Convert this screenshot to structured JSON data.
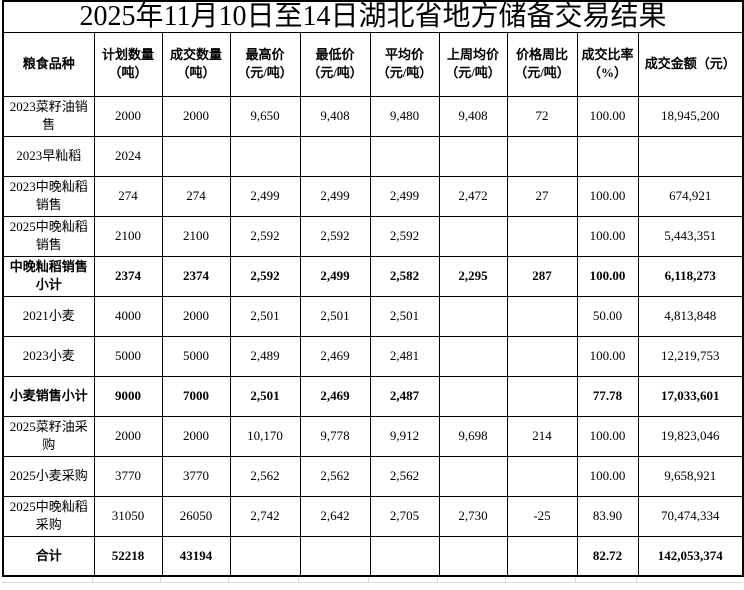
{
  "title": "2025年11月10日至14日湖北省地方储备交易结果",
  "colors": {
    "background": "#ffffff",
    "border": "#000000",
    "text": "#000000",
    "sheet_gridline": "#d9d9d9"
  },
  "chart_data": {
    "type": "table",
    "title": "2025年11月10日至14日湖北省地方储备交易结果",
    "columns": [
      "粮食品种",
      "计划数量\n（吨）",
      "成交数量\n（吨）",
      "最高价\n（元/吨）",
      "最低价\n（元/吨）",
      "平均价\n（元/吨）",
      "上周均价\n（元/吨）",
      "价格周比\n（元/吨）",
      "成交比率\n（%）",
      "成交金额（元）"
    ],
    "rows": [
      {
        "name": "2023菜籽油销售",
        "bold": false,
        "values": [
          "2000",
          "2000",
          "9,650",
          "9,408",
          "9,480",
          "9,408",
          "72",
          "100.00",
          "18,945,200"
        ]
      },
      {
        "name": "2023早籼稻",
        "bold": false,
        "values": [
          "2024",
          "",
          "",
          "",
          "",
          "",
          "",
          "",
          ""
        ]
      },
      {
        "name": "2023中晚籼稻销售",
        "bold": false,
        "values": [
          "274",
          "274",
          "2,499",
          "2,499",
          "2,499",
          "2,472",
          "27",
          "100.00",
          "674,921"
        ]
      },
      {
        "name": "2025中晚籼稻销售",
        "bold": false,
        "values": [
          "2100",
          "2100",
          "2,592",
          "2,592",
          "2,592",
          "",
          "",
          "100.00",
          "5,443,351"
        ]
      },
      {
        "name": "中晚籼稻销售小计",
        "bold": true,
        "values": [
          "2374",
          "2374",
          "2,592",
          "2,499",
          "2,582",
          "2,295",
          "287",
          "100.00",
          "6,118,273"
        ]
      },
      {
        "name": "2021小麦",
        "bold": false,
        "values": [
          "4000",
          "2000",
          "2,501",
          "2,501",
          "2,501",
          "",
          "",
          "50.00",
          "4,813,848"
        ]
      },
      {
        "name": "2023小麦",
        "bold": false,
        "values": [
          "5000",
          "5000",
          "2,489",
          "2,469",
          "2,481",
          "",
          "",
          "100.00",
          "12,219,753"
        ]
      },
      {
        "name": "小麦销售小计",
        "bold": true,
        "values": [
          "9000",
          "7000",
          "2,501",
          "2,469",
          "2,487",
          "",
          "",
          "77.78",
          "17,033,601"
        ]
      },
      {
        "name": "2025菜籽油采购",
        "bold": false,
        "values": [
          "2000",
          "2000",
          "10,170",
          "9,778",
          "9,912",
          "9,698",
          "214",
          "100.00",
          "19,823,046"
        ]
      },
      {
        "name": "2025小麦采购",
        "bold": false,
        "values": [
          "3770",
          "3770",
          "2,562",
          "2,562",
          "2,562",
          "",
          "",
          "100.00",
          "9,658,921"
        ]
      },
      {
        "name": "2025中晚籼稻采购",
        "bold": false,
        "values": [
          "31050",
          "26050",
          "2,742",
          "2,642",
          "2,705",
          "2,730",
          "-25",
          "83.90",
          "70,474,334"
        ]
      },
      {
        "name": "合计",
        "bold": true,
        "values": [
          "52218",
          "43194",
          "",
          "",
          "",
          "",
          "",
          "82.72",
          "142,053,374"
        ]
      }
    ]
  }
}
